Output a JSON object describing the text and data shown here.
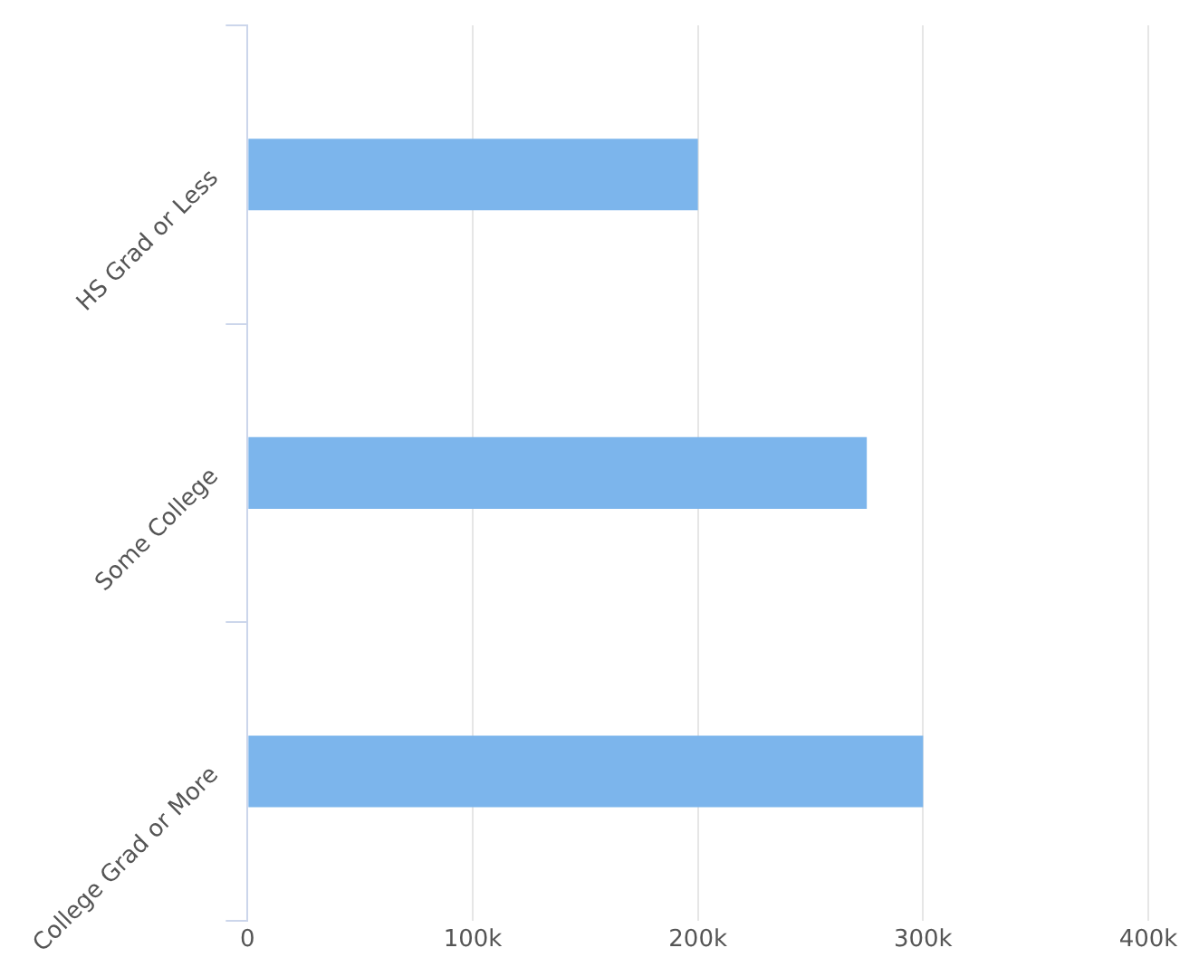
{
  "chart_data": {
    "type": "bar",
    "orientation": "horizontal",
    "categories": [
      "HS Grad or Less",
      "Some College",
      "College Grad or More"
    ],
    "values": [
      200000,
      275000,
      300000
    ],
    "color": "#7cb5ec",
    "xlim": [
      0,
      400000
    ],
    "xticks": [
      {
        "value": 0,
        "label": "0"
      },
      {
        "value": 100000,
        "label": "100k"
      },
      {
        "value": 200000,
        "label": "200k"
      },
      {
        "value": 300000,
        "label": "300k"
      },
      {
        "value": 400000,
        "label": "400k"
      }
    ],
    "grid": "x",
    "legend": false
  }
}
